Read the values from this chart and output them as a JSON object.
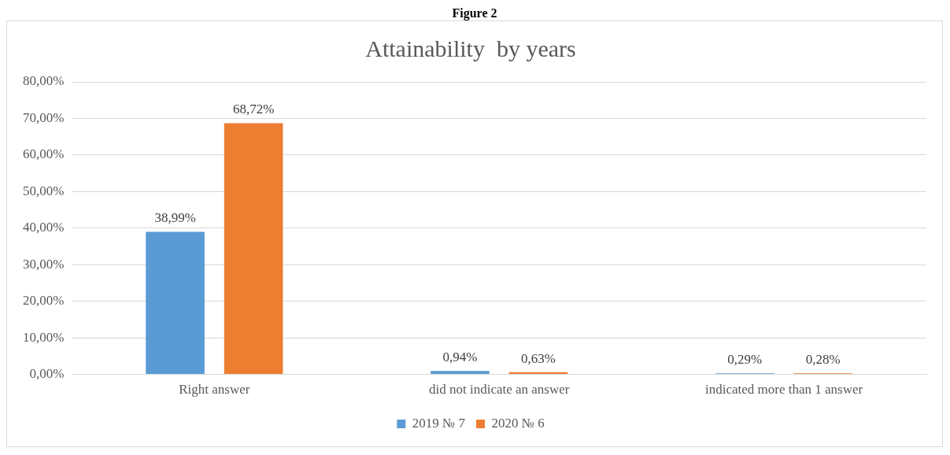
{
  "chart_data": {
    "type": "bar",
    "title": "Attainability  by years",
    "annotations": [
      "Figure 2"
    ],
    "categories": [
      "Right answer",
      "did not indicate an answer",
      "indicated more than 1 answer"
    ],
    "series": [
      {
        "name": "2019 № 7",
        "color": "#5b9bd5",
        "values": [
          38.99,
          0.94,
          0.29
        ],
        "value_labels": [
          "38,99%",
          "0,94%",
          "0,29%"
        ]
      },
      {
        "name": "2020 № 6",
        "color": "#ed7d31",
        "values": [
          68.72,
          0.63,
          0.28
        ],
        "value_labels": [
          "68,72%",
          "0,63%",
          "0,28%"
        ]
      }
    ],
    "ylim": [
      0,
      80
    ],
    "yticks": [
      {
        "value": 0,
        "label": "0,00%"
      },
      {
        "value": 10,
        "label": "10,00%"
      },
      {
        "value": 20,
        "label": "20,00%"
      },
      {
        "value": 30,
        "label": "30,00%"
      },
      {
        "value": 40,
        "label": "40,00%"
      },
      {
        "value": 50,
        "label": "50,00%"
      },
      {
        "value": 60,
        "label": "60,00%"
      },
      {
        "value": 70,
        "label": "70,00%"
      },
      {
        "value": 80,
        "label": "80,00%"
      }
    ],
    "grid": "y",
    "legend": "bottom"
  }
}
